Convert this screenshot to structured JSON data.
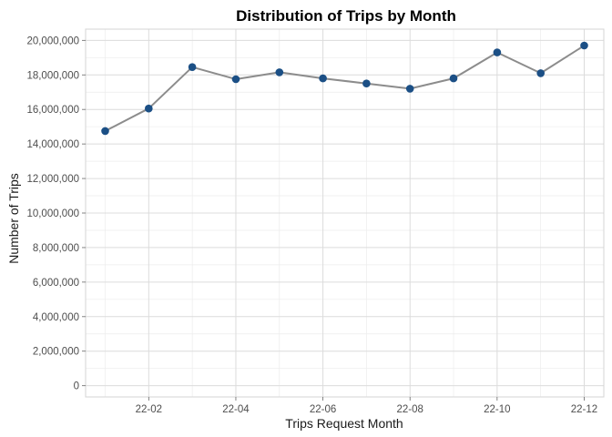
{
  "chart_data": {
    "type": "line",
    "title": "Distribution of Trips by Month",
    "xlabel": "Trips Request Month",
    "ylabel": "Number of Trips",
    "x": [
      "22-01",
      "22-02",
      "22-03",
      "22-04",
      "22-05",
      "22-06",
      "22-07",
      "22-08",
      "22-09",
      "22-10",
      "22-11",
      "22-12"
    ],
    "x_tick_labels": [
      "22-02",
      "22-04",
      "22-06",
      "22-08",
      "22-10",
      "22-12"
    ],
    "y_tick_labels": [
      "0",
      "2,000,000",
      "4,000,000",
      "6,000,000",
      "8,000,000",
      "10,000,000",
      "12,000,000",
      "14,000,000",
      "16,000,000",
      "18,000,000",
      "20,000,000"
    ],
    "y_ticks": [
      0,
      2000000,
      4000000,
      6000000,
      8000000,
      10000000,
      12000000,
      14000000,
      16000000,
      18000000,
      20000000
    ],
    "series": [
      {
        "values": [
          14750000,
          16050000,
          18450000,
          17750000,
          18150000,
          17800000,
          17500000,
          17200000,
          17800000,
          19300000,
          18100000,
          19700000
        ]
      }
    ],
    "ylim": [
      -650000,
      20650000
    ],
    "grid": true,
    "legend": "none",
    "colors": {
      "line": "#8c8c8c",
      "point": "#1b4f85",
      "grid_major": "#dcdcdc",
      "grid_minor": "#ececec"
    }
  }
}
